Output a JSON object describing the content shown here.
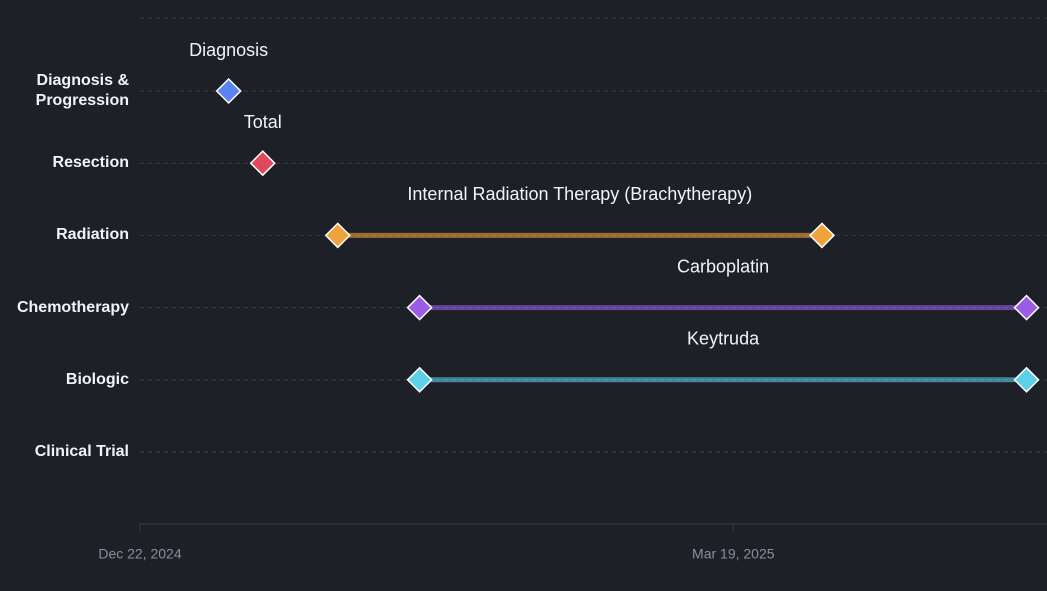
{
  "chart_data": {
    "type": "timeline",
    "xlim": [
      "2024-12-22",
      "2025-05-04"
    ],
    "xticks": [
      {
        "value": "2024-12-22",
        "label": "Dec 22, 2024"
      },
      {
        "value": "2025-03-19",
        "label": "Mar 19, 2025"
      }
    ],
    "grid": true,
    "rows": [
      {
        "label": "Diagnosis & Progression",
        "events": [
          {
            "name": "Diagnosis",
            "color": "#5b84f1",
            "x": [
              "2025-01-04"
            ]
          }
        ]
      },
      {
        "label": "Resection",
        "events": [
          {
            "name": "Total",
            "color": "#e0485e",
            "x": [
              "2025-01-09"
            ]
          }
        ]
      },
      {
        "label": "Radiation",
        "events": [
          {
            "name": "Internal Radiation Therapy (Brachytherapy)",
            "color": "#f0a23b",
            "x": [
              "2025-01-20",
              "2025-04-01"
            ]
          }
        ]
      },
      {
        "label": "Chemotherapy",
        "events": [
          {
            "name": "Carboplatin",
            "color": "#9b5de5",
            "x": [
              "2025-02-01",
              "2025-05-01"
            ]
          }
        ]
      },
      {
        "label": "Biologic",
        "events": [
          {
            "name": "Keytruda",
            "color": "#5bd0e8",
            "x": [
              "2025-02-01",
              "2025-05-01"
            ]
          }
        ]
      },
      {
        "label": "Clinical Trial",
        "events": []
      }
    ]
  }
}
